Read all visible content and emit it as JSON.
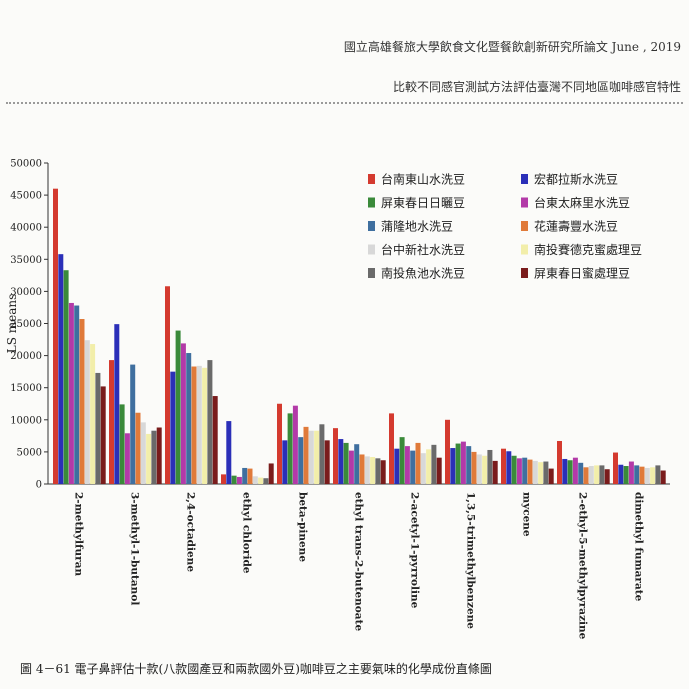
{
  "header": {
    "line1": "國立高雄餐旅大學飲食文化暨餐飲創新研究所論文 June , 2019",
    "line2": "比較不同感官測試方法評估臺灣不同地區咖啡感官特性"
  },
  "caption": "圖 4－61 電子鼻評估十款(八款國產豆和兩款國外豆)咖啡豆之主要氣味的化學成份直條圖",
  "chart_data": {
    "type": "bar",
    "title": "",
    "ylabel": "LS means",
    "xlabel": "",
    "ylim": [
      0,
      50000
    ],
    "yticks": [
      0,
      5000,
      10000,
      15000,
      20000,
      25000,
      30000,
      35000,
      40000,
      45000,
      50000
    ],
    "categories": [
      "2-methylfuran",
      "3-methyl-1-butanol",
      "2,4-octadiene",
      "ethyl chloride",
      "beta-pinene",
      "ethyl trans-2-butenoate",
      "2-acetyl-1-pyrroline",
      "1,3,5-trimethylbenzene",
      "mycene",
      "2-ethyl-5-methylpyrazine",
      "dimethyl fumarate"
    ],
    "series": [
      {
        "name": "台南東山水洗豆",
        "color": "#d43a2f",
        "values": [
          46000,
          19300,
          30800,
          1500,
          12500,
          8700,
          11000,
          10000,
          5500,
          6700,
          4900
        ]
      },
      {
        "name": "宏都拉斯水洗豆",
        "color": "#2b2fb8",
        "values": [
          35800,
          24900,
          17500,
          9800,
          6800,
          7000,
          5500,
          5600,
          5100,
          3900,
          3000
        ]
      },
      {
        "name": "屏東春日日曬豆",
        "color": "#3a8a3a",
        "values": [
          33300,
          12400,
          23900,
          1300,
          11000,
          6400,
          7300,
          6300,
          4400,
          3700,
          2800
        ]
      },
      {
        "name": "台東太麻里水洗豆",
        "color": "#b33aa8",
        "values": [
          28200,
          7900,
          21900,
          1100,
          12200,
          5200,
          5900,
          6600,
          4000,
          4100,
          3500
        ]
      },
      {
        "name": "蒲隆地水洗豆",
        "color": "#3f6f9f",
        "values": [
          27800,
          18600,
          20400,
          2500,
          7300,
          6200,
          5200,
          5900,
          4100,
          3300,
          2900
        ]
      },
      {
        "name": "花蓮壽豐水洗豆",
        "color": "#e07a3a",
        "values": [
          25700,
          11100,
          18300,
          2400,
          8900,
          4600,
          6400,
          5000,
          3800,
          2600,
          2700
        ]
      },
      {
        "name": "台中新社水洗豆",
        "color": "#d8d8d8",
        "values": [
          22400,
          9600,
          18400,
          1200,
          8300,
          4300,
          4800,
          4600,
          3600,
          2800,
          2500
        ]
      },
      {
        "name": "南投賽德克蜜處理豆",
        "color": "#f2eeaa",
        "values": [
          21800,
          7800,
          18100,
          1000,
          8300,
          4200,
          5400,
          4400,
          3400,
          2900,
          2600
        ]
      },
      {
        "name": "南投魚池水洗豆",
        "color": "#6a6a6a",
        "values": [
          17300,
          8300,
          19300,
          900,
          9300,
          4000,
          6100,
          5300,
          3500,
          2900,
          2900
        ]
      },
      {
        "name": "屏東春日蜜處理豆",
        "color": "#7a1c1c",
        "values": [
          15200,
          8800,
          13700,
          3200,
          6800,
          3700,
          4100,
          3600,
          2400,
          2300,
          2100
        ]
      }
    ],
    "legend_position": "top-right",
    "grid": false
  }
}
